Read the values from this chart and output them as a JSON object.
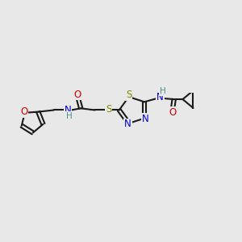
{
  "bg_color": "#e8e8e8",
  "bond_color": "#1a1a1a",
  "bond_width": 1.5,
  "atom_colors": {
    "C": "#1a1a1a",
    "N": "#0000cc",
    "O": "#cc0000",
    "S": "#888800",
    "H": "#4a9090"
  },
  "font_size": 8.5,
  "figure_size": [
    3.0,
    3.0
  ],
  "dpi": 100
}
